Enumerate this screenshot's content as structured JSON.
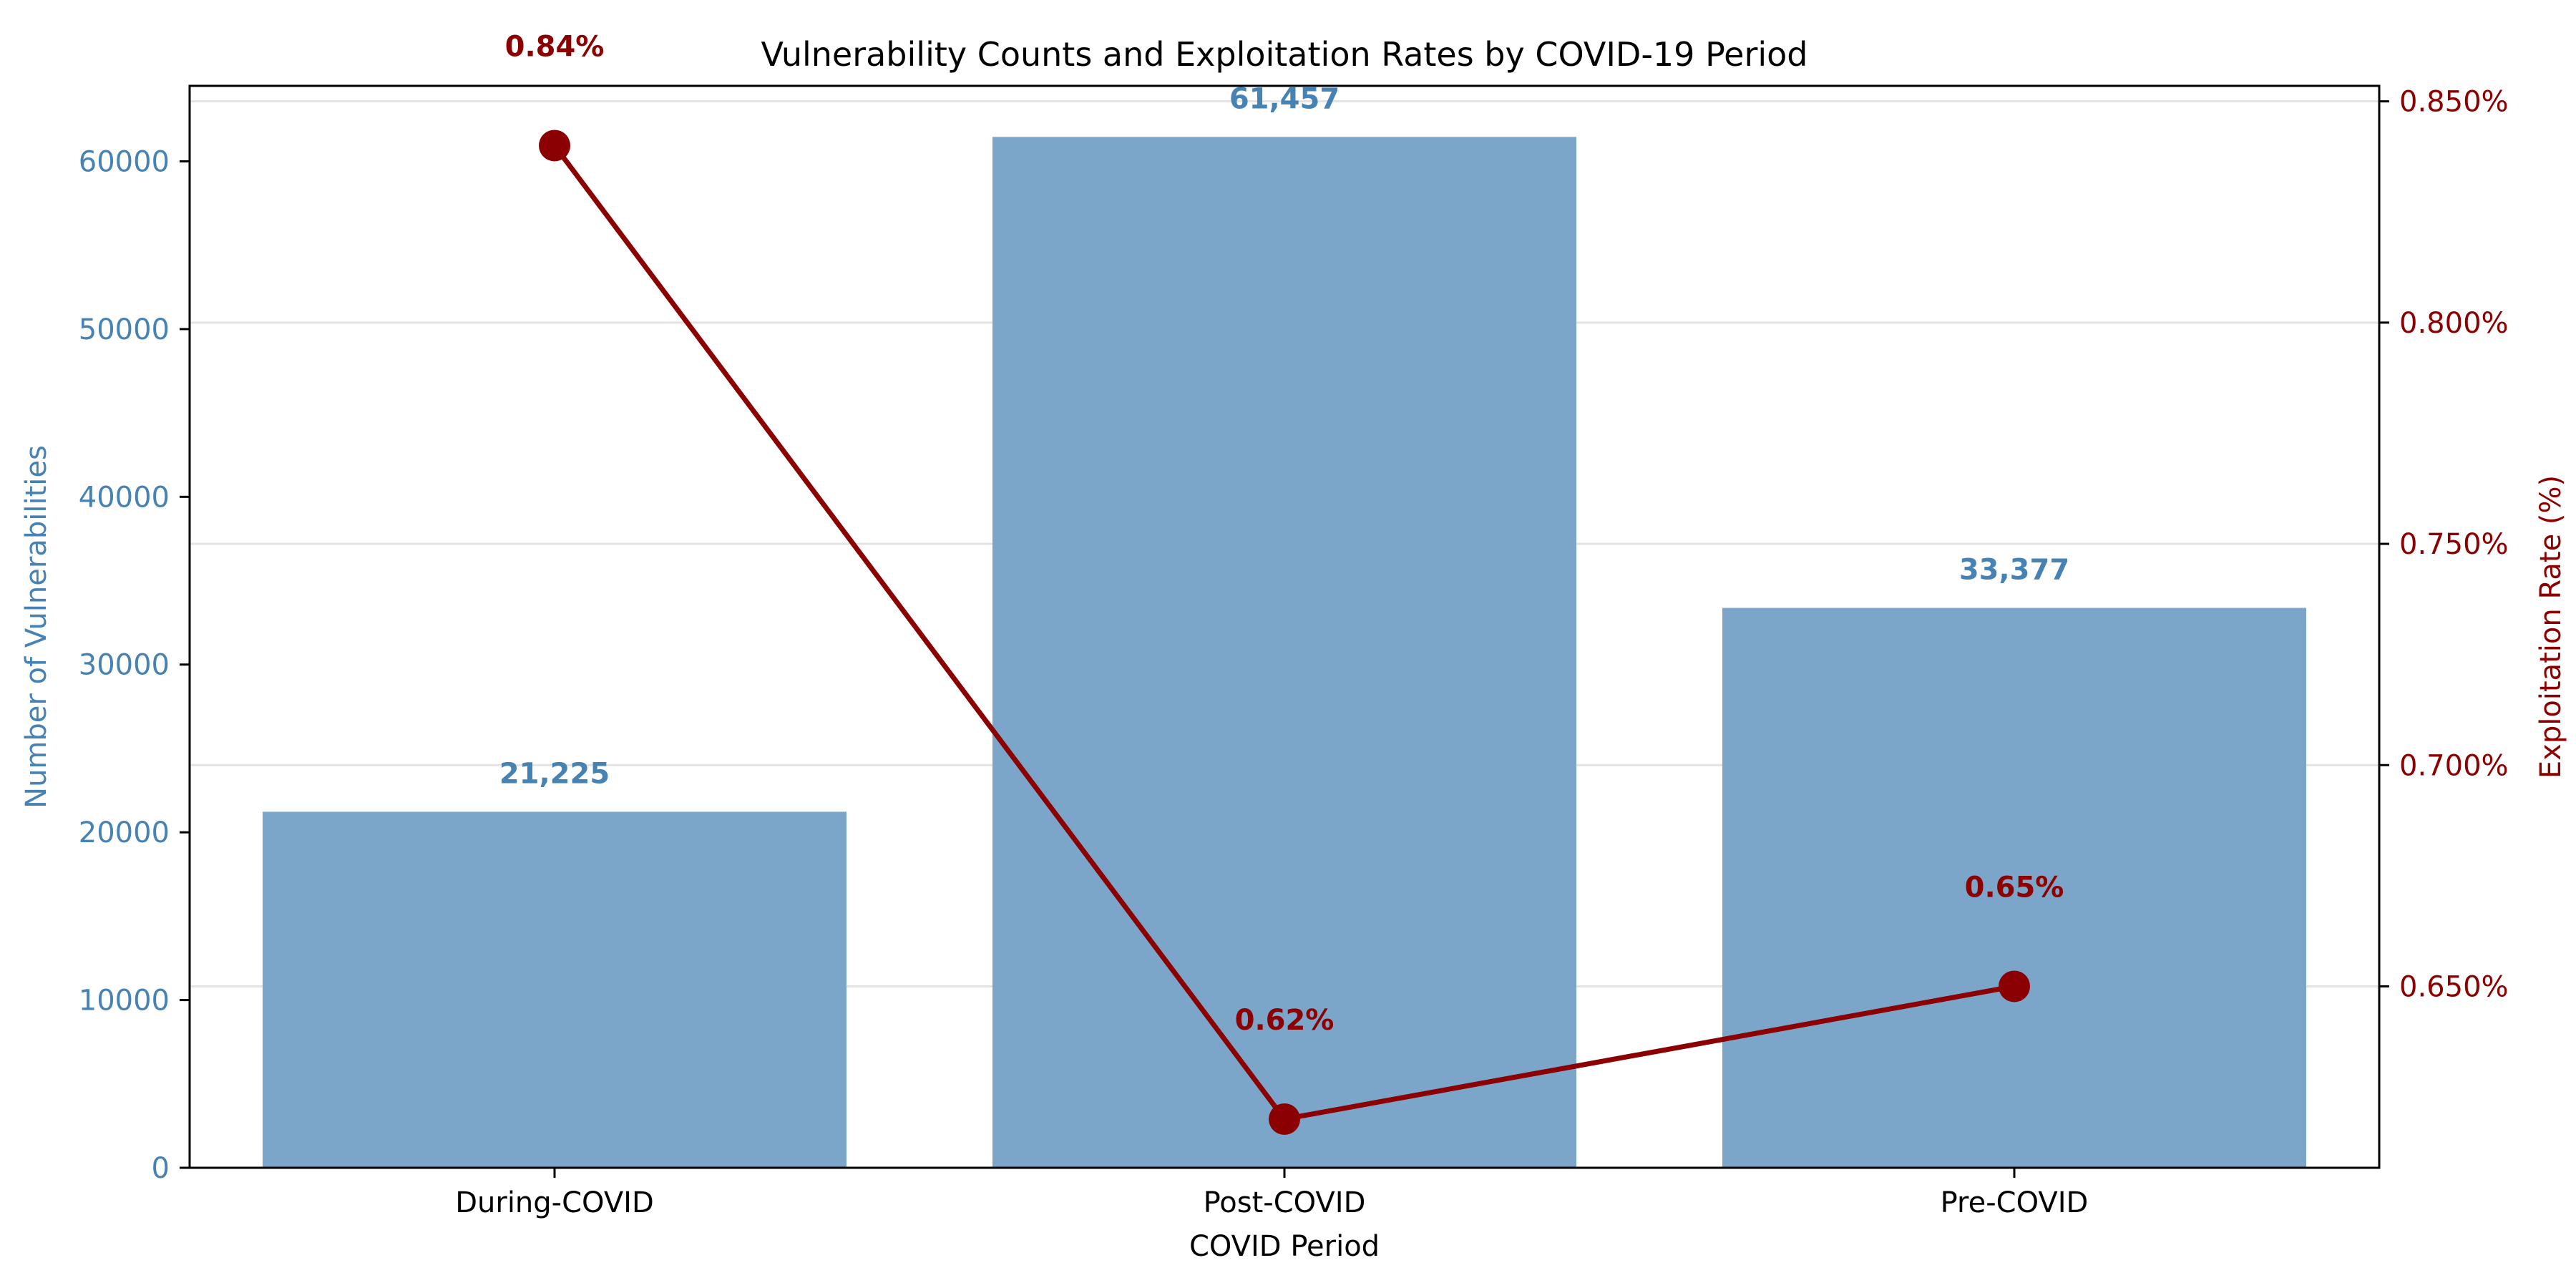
{
  "chart_data": {
    "type": "bar",
    "title": "Vulnerability Counts and Exploitation Rates by COVID-19 Period",
    "xlabel": "COVID Period",
    "ylabel": "Number of Vulnerabilities",
    "y2label": "Exploitation Rate (%)",
    "categories": [
      "During-COVID",
      "Post-COVID",
      "Pre-COVID"
    ],
    "bar_series": {
      "values": [
        21225,
        61457,
        33377
      ],
      "labels": [
        "21,225",
        "61,457",
        "33,377"
      ],
      "color": "#7ba6ca",
      "label_color": "#4682b4"
    },
    "line_series": {
      "values": [
        0.84,
        0.62,
        0.65
      ],
      "labels": [
        "0.84%",
        "0.62%",
        "0.65%"
      ],
      "color": "#8b0000"
    },
    "ylim": [
      0,
      64500
    ],
    "y_ticks": [
      0,
      10000,
      20000,
      30000,
      40000,
      50000,
      60000
    ],
    "y_tick_labels": [
      "0",
      "10000",
      "20000",
      "30000",
      "40000",
      "50000",
      "60000"
    ],
    "y2lim": [
      0.609,
      0.8535
    ],
    "y2_ticks": [
      0.65,
      0.7,
      0.75,
      0.8,
      0.85
    ],
    "y2_tick_labels": [
      "0.650%",
      "0.700%",
      "0.750%",
      "0.800%",
      "0.850%"
    ],
    "grid": "y-right",
    "left_axis_color": "#4682b4",
    "right_axis_color": "#8b0000"
  }
}
